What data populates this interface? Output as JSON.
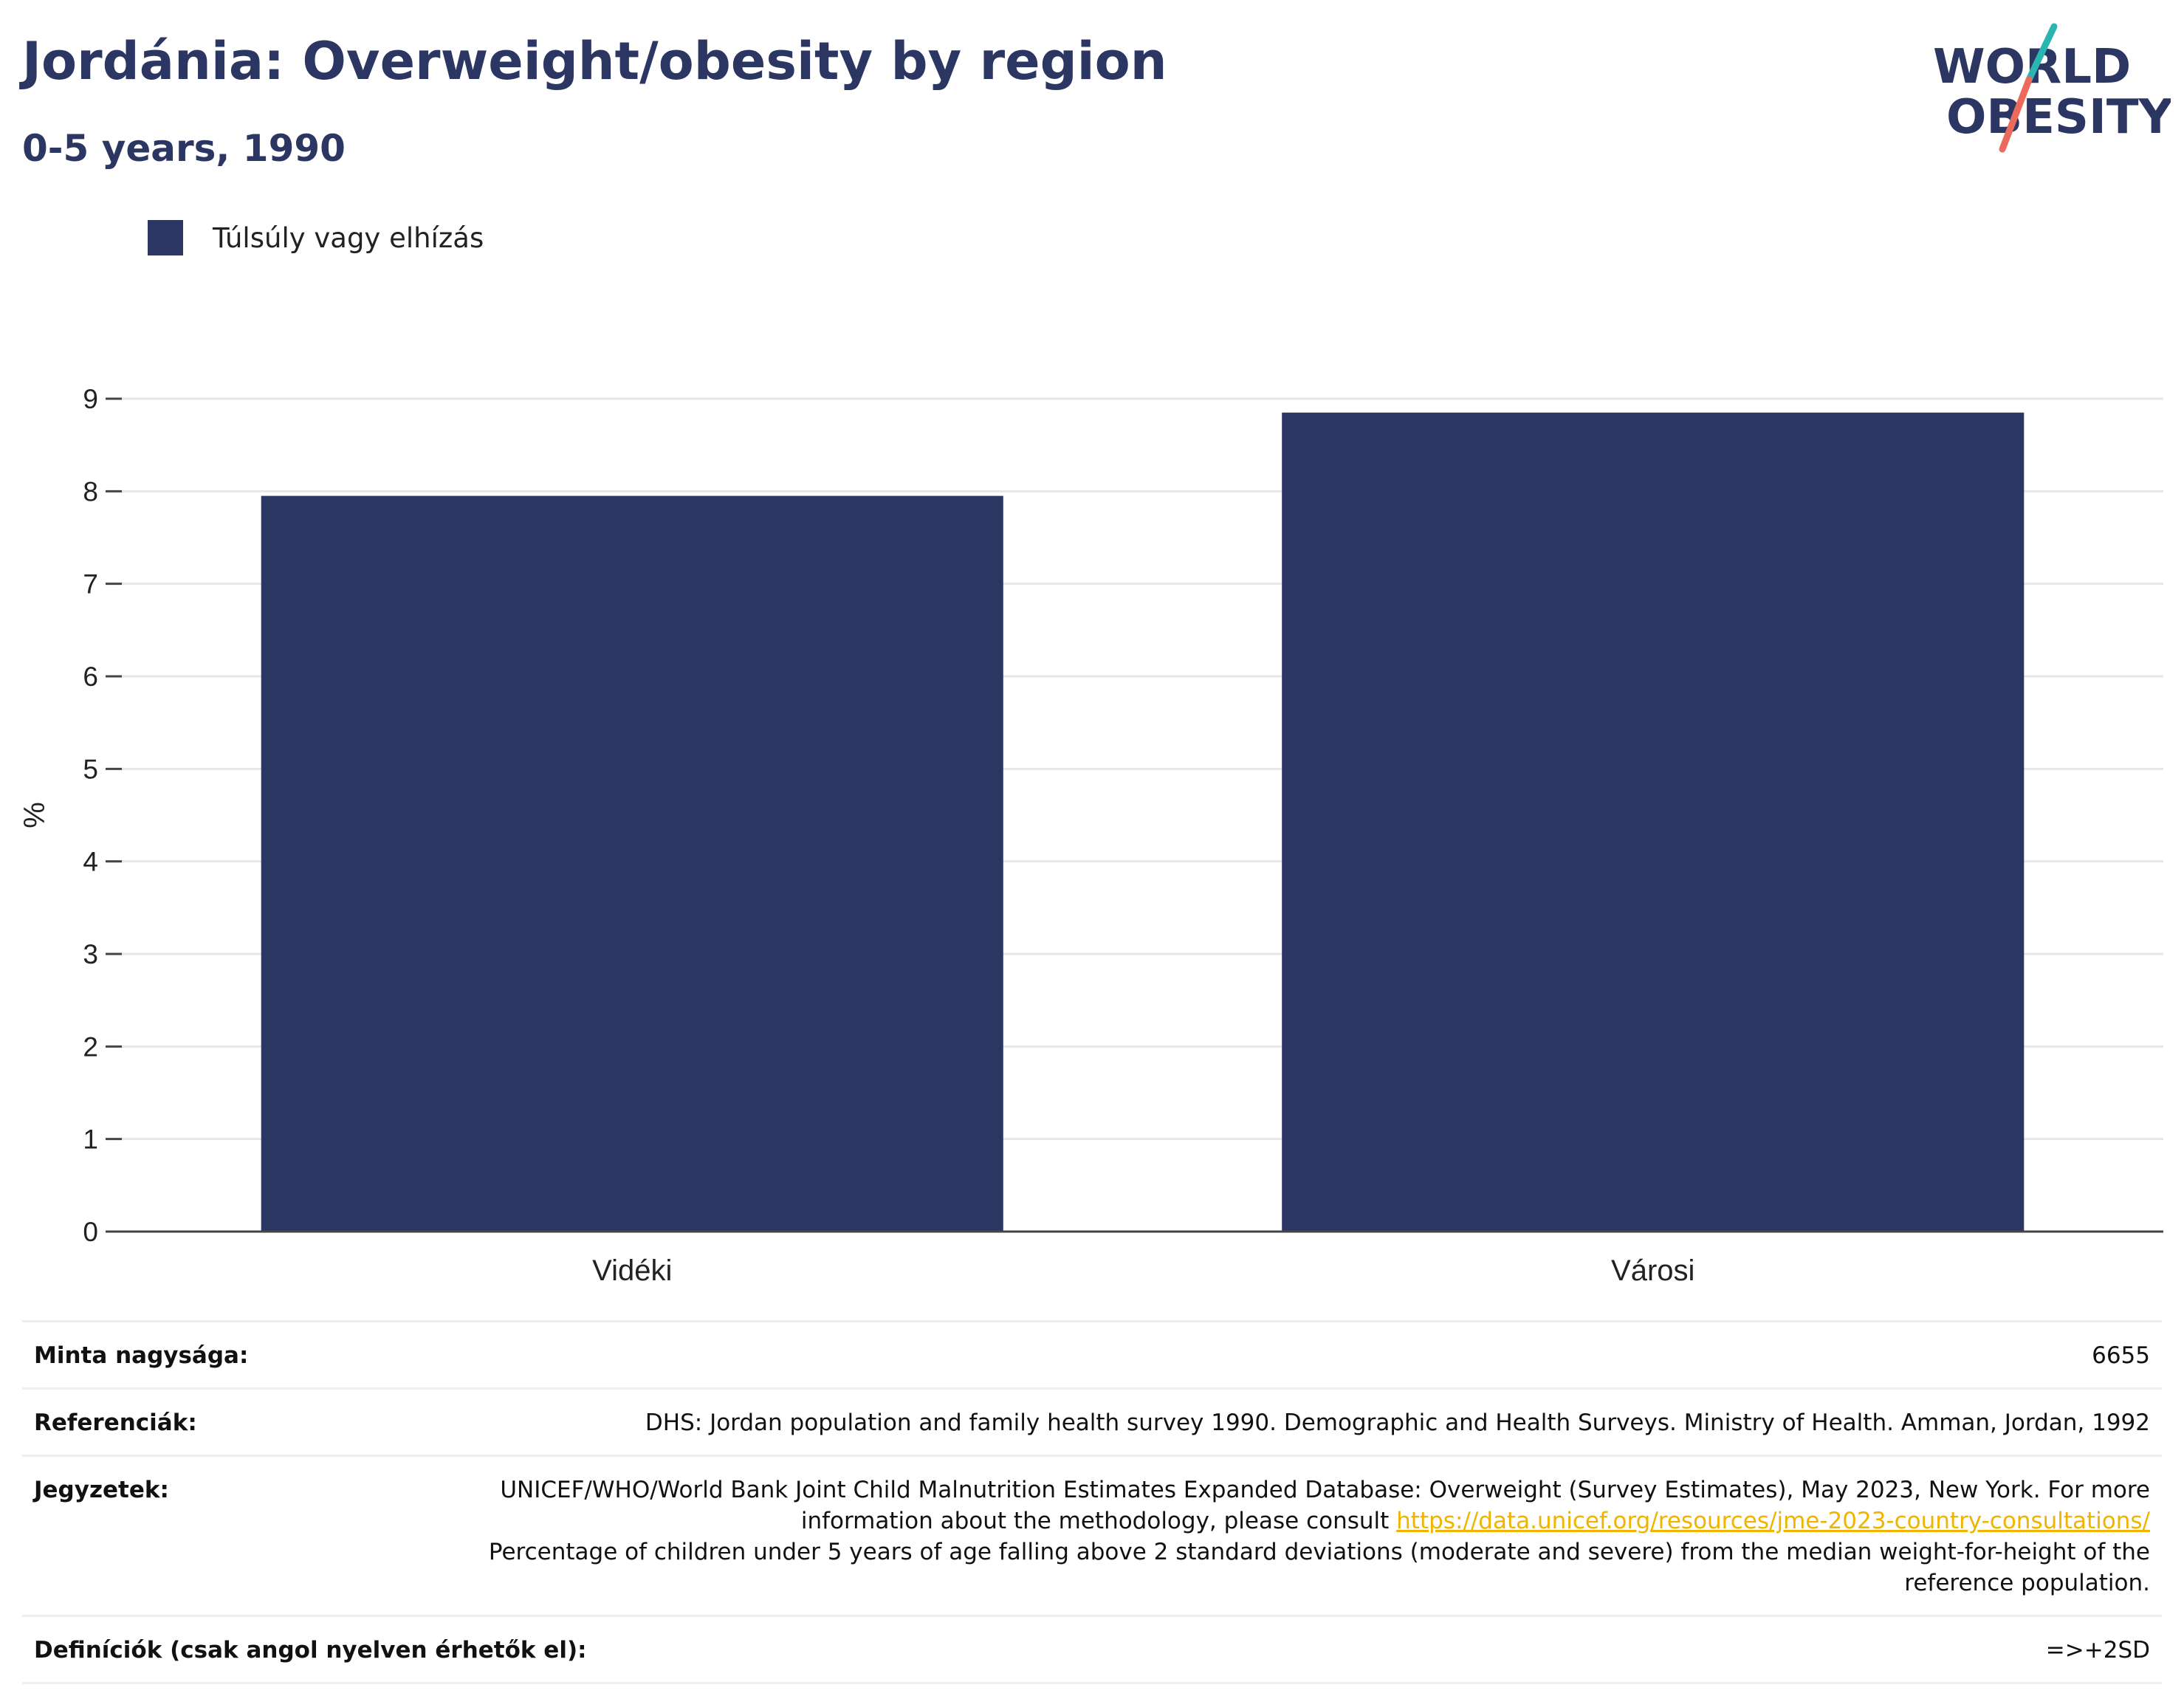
{
  "header": {
    "title": "Jordánia: Overweight/obesity by region",
    "subtitle": "0-5 years, 1990"
  },
  "logo": {
    "line1": "WORLD",
    "line2": "OBESITY",
    "colors": {
      "text": "#2b3663",
      "teal": "#2bb5b1",
      "coral": "#ec6a5c"
    }
  },
  "legend": {
    "label": "Túlsúly vagy elhízás",
    "color": "#2b3663"
  },
  "chart_data": {
    "type": "bar",
    "categories": [
      "Vidéki",
      "Városi"
    ],
    "series": [
      {
        "name": "Túlsúly vagy elhízás",
        "values": [
          7.95,
          8.85
        ]
      }
    ],
    "ylabel": "%",
    "xlabel": "",
    "ylim": [
      0,
      9
    ],
    "yticks": [
      0,
      1,
      2,
      3,
      4,
      5,
      6,
      7,
      8,
      9
    ],
    "grid": true,
    "legend_position": "top-left",
    "bar_color": "#2b3663"
  },
  "info": {
    "sample_size": {
      "label": "Minta nagysága:",
      "value": "6655"
    },
    "references": {
      "label": "Referenciák:",
      "value": "DHS: Jordan population and family health survey 1990. Demographic and Health Surveys. Ministry of Health. Amman, Jordan, 1992"
    },
    "notes": {
      "label": "Jegyzetek:",
      "text_before": "UNICEF/WHO/World Bank Joint Child Malnutrition Estimates Expanded Database: Overweight (Survey Estimates), May 2023, New York. For more information about the methodology, please consult ",
      "link": "https://data.unicef.org/resources/jme-2023-country-consultations/",
      "text_after": "Percentage of children under 5 years of age falling above 2 standard deviations (moderate and severe) from the median weight-for-height of the reference population."
    },
    "definitions": {
      "label": "Definíciók (csak angol nyelven érhetők el):",
      "value": "=>+2SD"
    }
  }
}
